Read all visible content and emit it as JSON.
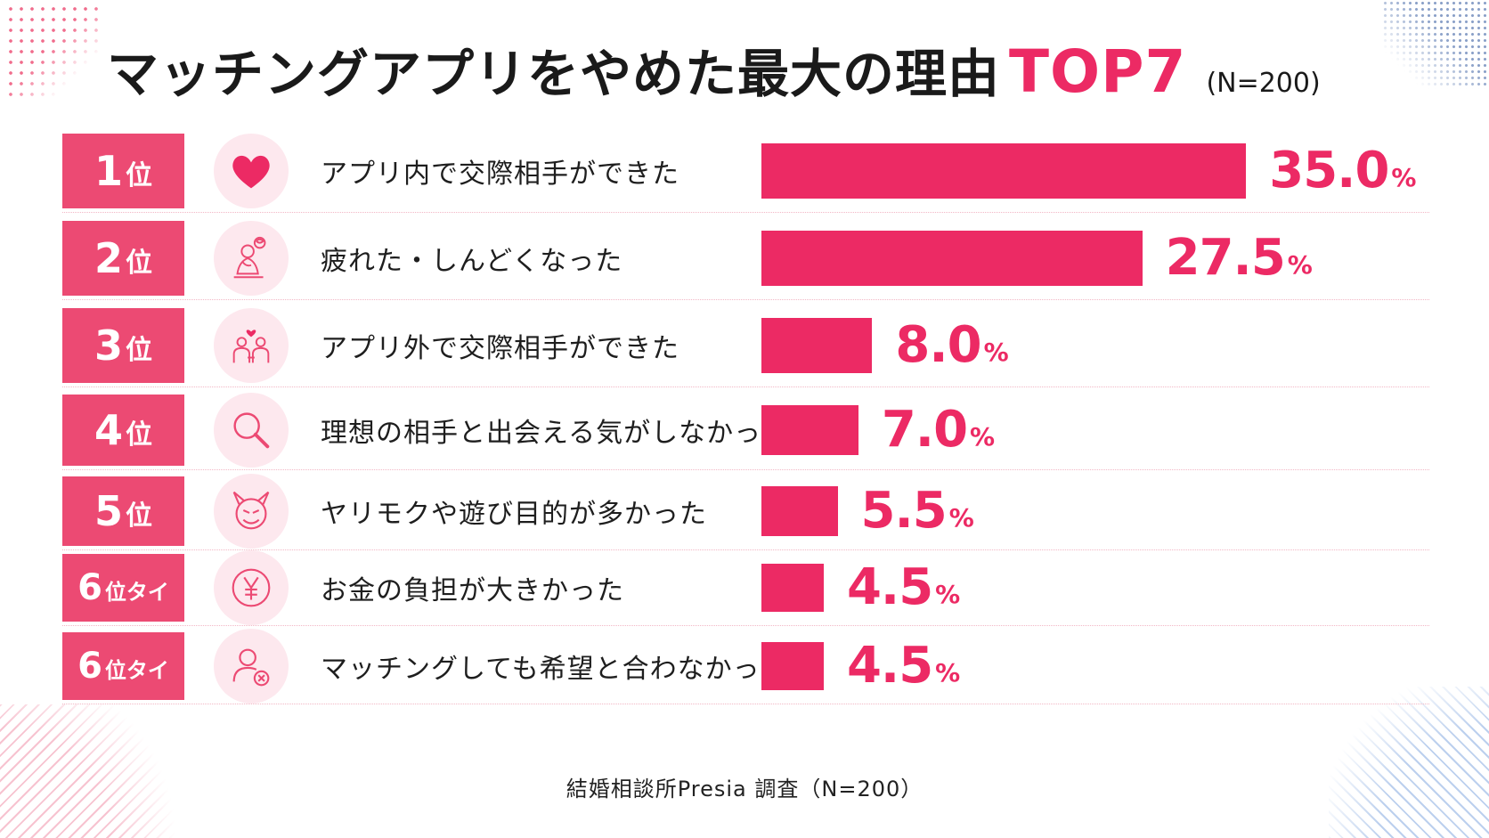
{
  "header": {
    "title_main": "マッチングアプリをやめた最大の理由",
    "title_accent": "TOP7",
    "sample_note": "(N=200)"
  },
  "chart_data": {
    "type": "bar",
    "orientation": "horizontal",
    "title": "マッチングアプリをやめた最大の理由TOP7",
    "unit": "%",
    "xlim": [
      0,
      40
    ],
    "grid": false,
    "bar_color": "#ec2a64",
    "categories": [
      "アプリ内で交際相手ができた",
      "疲れた・しんどくなった",
      "アプリ外で交際相手ができた",
      "理想の相手と出会える気がしなかった",
      "ヤリモクや遊び目的が多かった",
      "お金の負担が大きかった",
      "マッチングしても希望と合わなかった"
    ],
    "values": [
      35.0,
      27.5,
      8.0,
      7.0,
      5.5,
      4.5,
      4.5
    ],
    "value_labels": [
      "35.0",
      "27.5",
      "8.0",
      "7.0",
      "5.5",
      "4.5",
      "4.5"
    ],
    "ranks": [
      {
        "num": "1",
        "suffix": "位"
      },
      {
        "num": "2",
        "suffix": "位"
      },
      {
        "num": "3",
        "suffix": "位"
      },
      {
        "num": "4",
        "suffix": "位"
      },
      {
        "num": "5",
        "suffix": "位"
      },
      {
        "num": "6",
        "suffix": "位タイ"
      },
      {
        "num": "6",
        "suffix": "位タイ"
      }
    ],
    "icons": [
      "heart-icon",
      "tired-person-icon",
      "couple-icon",
      "magnifier-icon",
      "devil-face-icon",
      "yen-icon",
      "user-reject-icon"
    ]
  },
  "footer": {
    "source": "結婚相談所Presia 調査（N=200）"
  },
  "colors": {
    "accent": "#ec2a64",
    "rank_bg": "#ec4a73",
    "icon_bg": "#fde8ee"
  }
}
